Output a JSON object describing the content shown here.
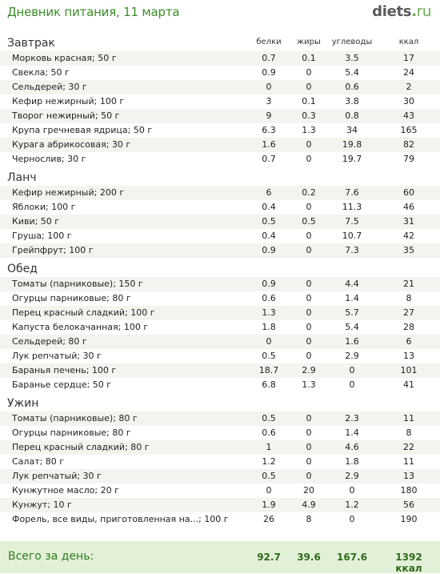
{
  "header": {
    "title": "Дневник питания, 11 марта",
    "logo_main": "diets",
    "logo_dot": ".",
    "logo_tld": "ru"
  },
  "columns": {
    "protein": "белки",
    "fat": "жиры",
    "carbs": "углеводы",
    "kcal": "ккал"
  },
  "meals": [
    {
      "name": "Завтрак",
      "items": [
        {
          "name": "Морковь красная; 50 г",
          "b": "0.7",
          "z": "0.1",
          "u": "3.5",
          "k": "17"
        },
        {
          "name": "Свекла; 50 г",
          "b": "0.9",
          "z": "0",
          "u": "5.4",
          "k": "24"
        },
        {
          "name": "Сельдерей; 30 г",
          "b": "0",
          "z": "0",
          "u": "0.6",
          "k": "2"
        },
        {
          "name": "Кефир нежирный; 100 г",
          "b": "3",
          "z": "0.1",
          "u": "3.8",
          "k": "30"
        },
        {
          "name": "Творог нежирный; 50 г",
          "b": "9",
          "z": "0.3",
          "u": "0.8",
          "k": "43"
        },
        {
          "name": "Крупа гречневая ядрица; 50 г",
          "b": "6.3",
          "z": "1.3",
          "u": "34",
          "k": "165"
        },
        {
          "name": "Курага абрикосовая; 30 г",
          "b": "1.6",
          "z": "0",
          "u": "19.8",
          "k": "82"
        },
        {
          "name": "Чернослив; 30 г",
          "b": "0.7",
          "z": "0",
          "u": "19.7",
          "k": "79"
        }
      ]
    },
    {
      "name": "Ланч",
      "items": [
        {
          "name": "Кефир нежирный; 200 г",
          "b": "6",
          "z": "0.2",
          "u": "7.6",
          "k": "60"
        },
        {
          "name": "Яблоки; 100 г",
          "b": "0.4",
          "z": "0",
          "u": "11.3",
          "k": "46"
        },
        {
          "name": "Киви; 50 г",
          "b": "0.5",
          "z": "0.5",
          "u": "7.5",
          "k": "31"
        },
        {
          "name": "Груша; 100 г",
          "b": "0.4",
          "z": "0",
          "u": "10.7",
          "k": "42"
        },
        {
          "name": "Грейпфрут; 100 г",
          "b": "0.9",
          "z": "0",
          "u": "7.3",
          "k": "35"
        }
      ]
    },
    {
      "name": "Обед",
      "items": [
        {
          "name": "Томаты (парниковые); 150 г",
          "b": "0.9",
          "z": "0",
          "u": "4.4",
          "k": "21"
        },
        {
          "name": "Огурцы парниковые; 80 г",
          "b": "0.6",
          "z": "0",
          "u": "1.4",
          "k": "8"
        },
        {
          "name": "Перец красный сладкий; 100 г",
          "b": "1.3",
          "z": "0",
          "u": "5.7",
          "k": "27"
        },
        {
          "name": "Капуста белокачанная; 100 г",
          "b": "1.8",
          "z": "0",
          "u": "5.4",
          "k": "28"
        },
        {
          "name": "Сельдерей; 80 г",
          "b": "0",
          "z": "0",
          "u": "1.6",
          "k": "6"
        },
        {
          "name": "Лук репчатый; 30 г",
          "b": "0.5",
          "z": "0",
          "u": "2.9",
          "k": "13"
        },
        {
          "name": "Баранья печень; 100 г",
          "b": "18.7",
          "z": "2.9",
          "u": "0",
          "k": "101"
        },
        {
          "name": "Баранье сердце; 50 г",
          "b": "6.8",
          "z": "1.3",
          "u": "0",
          "k": "41"
        }
      ]
    },
    {
      "name": "Ужин",
      "items": [
        {
          "name": "Томаты (парниковые); 80 г",
          "b": "0.5",
          "z": "0",
          "u": "2.3",
          "k": "11"
        },
        {
          "name": "Огурцы парниковые; 80 г",
          "b": "0.6",
          "z": "0",
          "u": "1.4",
          "k": "8"
        },
        {
          "name": "Перец красный сладкий; 80 г",
          "b": "1",
          "z": "0",
          "u": "4.6",
          "k": "22"
        },
        {
          "name": "Салат; 80 г",
          "b": "1.2",
          "z": "0",
          "u": "1.8",
          "k": "11"
        },
        {
          "name": "Лук репчатый; 30 г",
          "b": "0.5",
          "z": "0",
          "u": "2.9",
          "k": "13"
        },
        {
          "name": "Кунжутное масло; 20 г",
          "b": "0",
          "z": "20",
          "u": "0",
          "k": "180"
        },
        {
          "name": "Кунжут; 10 г",
          "b": "1.9",
          "z": "4.9",
          "u": "1.2",
          "k": "56"
        },
        {
          "name": "Форель, все виды, приготовленная на...; 100 г",
          "b": "26",
          "z": "8",
          "u": "0",
          "k": "190"
        }
      ]
    }
  ],
  "total": {
    "label": "Всего за день:",
    "b": "92.7",
    "z": "39.6",
    "u": "167.6",
    "k": "1392 ккал"
  }
}
